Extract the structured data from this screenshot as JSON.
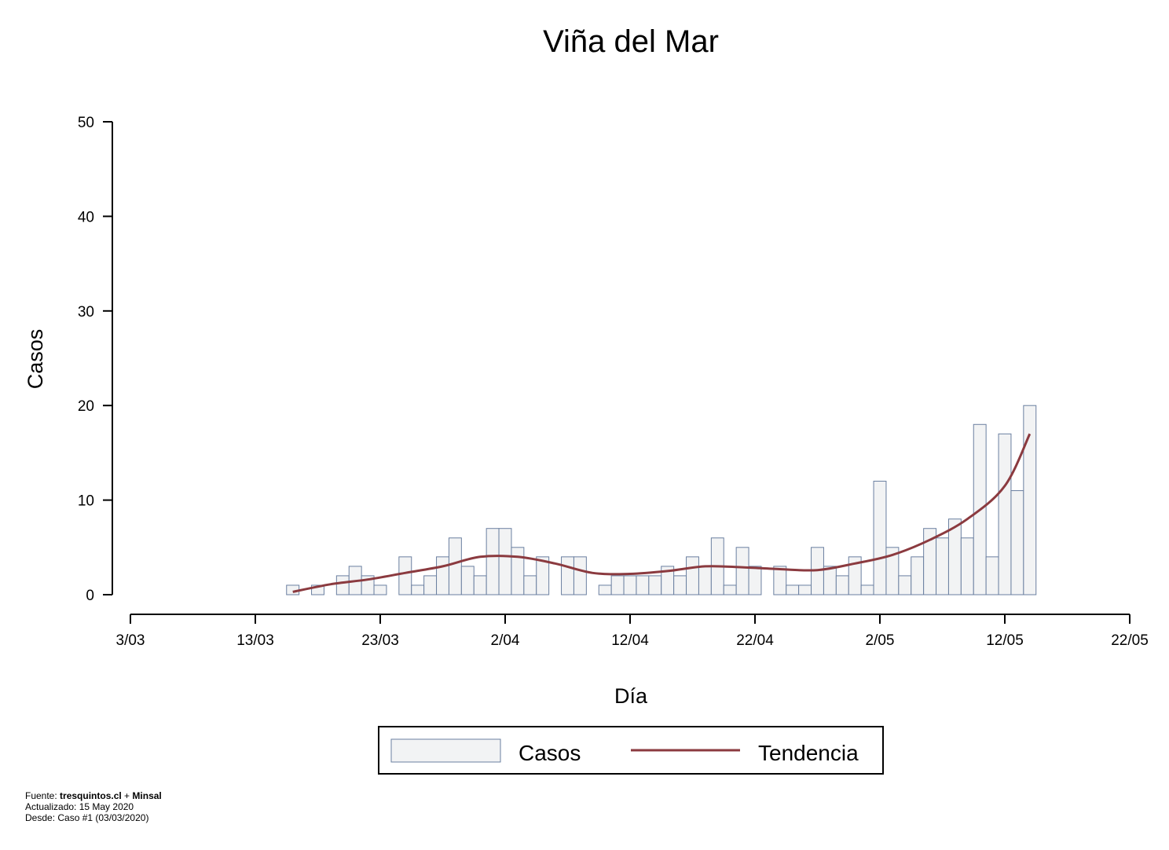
{
  "chart_data": {
    "type": "bar",
    "title": "Viña del Mar",
    "xlabel": "Día",
    "ylabel": "Casos",
    "ylim": [
      0,
      50
    ],
    "yticks": [
      0,
      10,
      20,
      30,
      40,
      50
    ],
    "xlim": [
      "2020-03-03",
      "2020-05-22"
    ],
    "xticks": [
      "3/03",
      "13/03",
      "23/03",
      "2/04",
      "12/04",
      "22/04",
      "2/05",
      "12/05",
      "22/05"
    ],
    "legend_position": "bottom",
    "bar_fill": "#f2f3f4",
    "bar_stroke": "#6a7fa0",
    "series": [
      {
        "name": "Casos",
        "x": [
          "2020-03-16",
          "2020-03-17",
          "2020-03-18",
          "2020-03-19",
          "2020-03-20",
          "2020-03-21",
          "2020-03-22",
          "2020-03-23",
          "2020-03-24",
          "2020-03-25",
          "2020-03-26",
          "2020-03-27",
          "2020-03-28",
          "2020-03-29",
          "2020-03-30",
          "2020-03-31",
          "2020-04-01",
          "2020-04-02",
          "2020-04-03",
          "2020-04-04",
          "2020-04-05",
          "2020-04-06",
          "2020-04-07",
          "2020-04-08",
          "2020-04-09",
          "2020-04-10",
          "2020-04-11",
          "2020-04-12",
          "2020-04-13",
          "2020-04-14",
          "2020-04-15",
          "2020-04-16",
          "2020-04-17",
          "2020-04-18",
          "2020-04-19",
          "2020-04-20",
          "2020-04-21",
          "2020-04-22",
          "2020-04-23",
          "2020-04-24",
          "2020-04-25",
          "2020-04-26",
          "2020-04-27",
          "2020-04-28",
          "2020-04-29",
          "2020-04-30",
          "2020-05-01",
          "2020-05-02",
          "2020-05-03",
          "2020-05-04",
          "2020-05-05",
          "2020-05-06",
          "2020-05-07",
          "2020-05-08",
          "2020-05-09",
          "2020-05-10",
          "2020-05-11",
          "2020-05-12",
          "2020-05-13",
          "2020-05-14",
          "2020-05-15"
        ],
        "values": [
          1,
          0,
          1,
          0,
          2,
          3,
          2,
          1,
          0,
          4,
          1,
          2,
          4,
          6,
          3,
          2,
          7,
          7,
          5,
          2,
          4,
          0,
          4,
          4,
          0,
          1,
          2,
          2,
          2,
          2,
          3,
          2,
          4,
          3,
          6,
          1,
          5,
          3,
          0,
          3,
          1,
          1,
          5,
          3,
          2,
          4,
          1,
          12,
          5,
          2,
          4,
          7,
          6,
          8,
          6,
          18,
          4,
          17,
          11,
          20,
          0
        ]
      },
      {
        "name": "Tendencia",
        "color": "#8b3a3f",
        "x": [
          "2020-03-16",
          "2020-03-19",
          "2020-03-22",
          "2020-03-25",
          "2020-03-28",
          "2020-03-31",
          "2020-04-03",
          "2020-04-06",
          "2020-04-09",
          "2020-04-12",
          "2020-04-15",
          "2020-04-18",
          "2020-04-21",
          "2020-04-24",
          "2020-04-27",
          "2020-04-30",
          "2020-05-03",
          "2020-05-06",
          "2020-05-09",
          "2020-05-12",
          "2020-05-14"
        ],
        "values": [
          0.3,
          1.1,
          1.6,
          2.3,
          3.0,
          4.0,
          4.0,
          3.3,
          2.3,
          2.2,
          2.5,
          3.0,
          2.9,
          2.7,
          2.6,
          3.3,
          4.2,
          5.8,
          8.0,
          11.5,
          17.0
        ]
      }
    ]
  },
  "footer": {
    "source_prefix": "Fuente: ",
    "source_site": "tresquintos.cl",
    "source_join": " + ",
    "source_org": "Minsal",
    "updated": "Actualizado: 15 May 2020",
    "since": "Desde: Caso #1  (03/03/2020)"
  }
}
